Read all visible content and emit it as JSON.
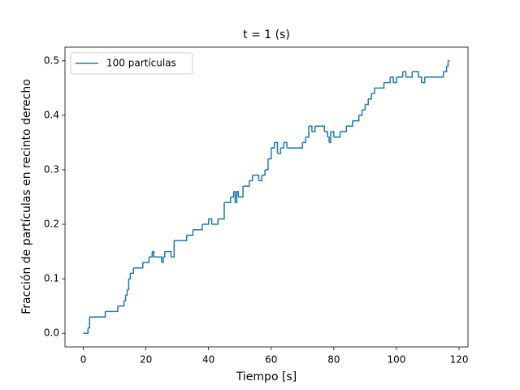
{
  "chart_data": {
    "type": "step",
    "title": "t = 1 (s)",
    "x_label": "Tiempo [s]",
    "y_label": "Fracción de partículas en recinto derecho",
    "series": [
      {
        "name": "100 partículas",
        "color": "#1f77b4",
        "x": [
          0,
          1.5,
          2,
          7,
          11,
          13,
          13.5,
          14,
          14.5,
          15,
          16,
          19,
          21,
          22,
          22.5,
          25,
          25.5,
          26,
          28,
          29,
          33,
          35,
          38,
          40,
          41,
          43,
          45,
          47,
          48,
          48.5,
          49,
          49.5,
          51,
          53,
          54,
          56,
          57,
          58,
          59,
          60,
          61,
          62,
          63,
          64,
          65,
          70,
          71,
          72,
          73,
          74,
          77,
          78,
          78.5,
          79,
          80,
          82,
          84,
          86,
          88,
          89,
          90,
          91,
          92,
          93,
          96,
          98,
          99,
          100,
          102,
          103,
          105,
          107,
          108,
          109,
          115,
          116,
          116.5,
          117
        ],
        "values": [
          0,
          0.01,
          0.03,
          0.04,
          0.05,
          0.06,
          0.07,
          0.08,
          0.1,
          0.11,
          0.12,
          0.13,
          0.14,
          0.15,
          0.14,
          0.13,
          0.14,
          0.15,
          0.14,
          0.17,
          0.18,
          0.19,
          0.2,
          0.21,
          0.2,
          0.21,
          0.24,
          0.25,
          0.26,
          0.24,
          0.26,
          0.25,
          0.27,
          0.28,
          0.29,
          0.28,
          0.29,
          0.3,
          0.32,
          0.34,
          0.35,
          0.33,
          0.34,
          0.35,
          0.34,
          0.35,
          0.36,
          0.38,
          0.37,
          0.38,
          0.37,
          0.36,
          0.35,
          0.37,
          0.36,
          0.37,
          0.38,
          0.39,
          0.4,
          0.41,
          0.42,
          0.43,
          0.44,
          0.45,
          0.46,
          0.47,
          0.46,
          0.47,
          0.48,
          0.47,
          0.48,
          0.47,
          0.46,
          0.47,
          0.48,
          0.49,
          0.5,
          0.5
        ]
      }
    ],
    "xlim": [
      -5.85,
      122.85
    ],
    "ylim": [
      -0.025,
      0.525
    ],
    "xticks": [
      0,
      20,
      40,
      60,
      80,
      100,
      120
    ],
    "yticks": [
      {
        "value": 0,
        "label": "0.0"
      },
      0.1,
      0.2,
      0.3,
      0.4,
      0.5
    ],
    "legend": "upper left"
  }
}
